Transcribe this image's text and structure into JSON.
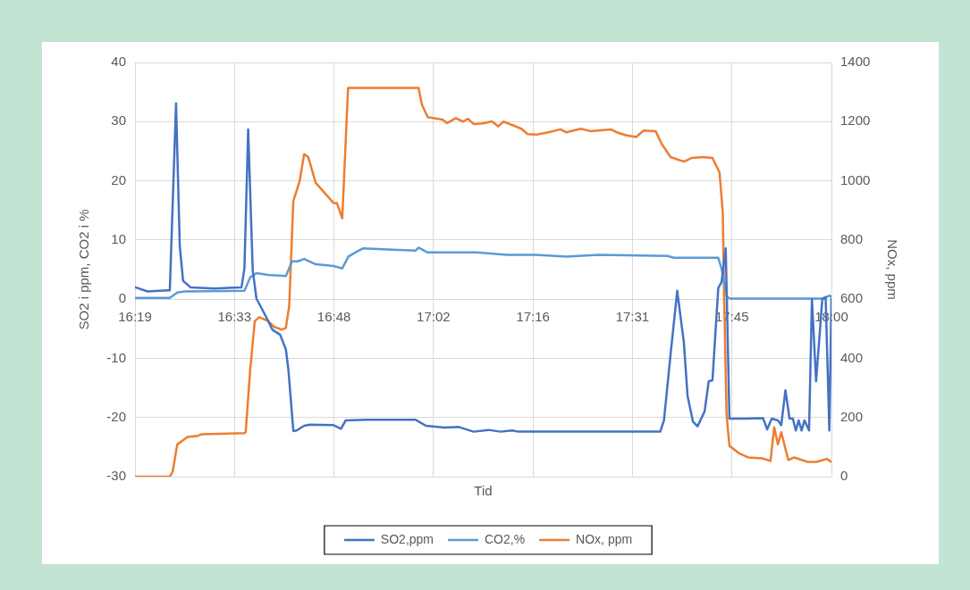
{
  "chart_data": {
    "type": "line",
    "xlabel": "Tid",
    "ylabel": "SO2 i ppm, CO2 i %",
    "y2label": "NOx, ppm",
    "xlim": [
      16.313,
      17.993
    ],
    "xticks": [
      {
        "value": 16.313,
        "label": "16:19"
      },
      {
        "value": 16.553,
        "label": "16:33"
      },
      {
        "value": 16.793,
        "label": "16:48"
      },
      {
        "value": 17.033,
        "label": "17:02"
      },
      {
        "value": 17.273,
        "label": "17:16"
      },
      {
        "value": 17.513,
        "label": "17:31"
      },
      {
        "value": 17.753,
        "label": "17:45"
      },
      {
        "value": 17.993,
        "label": "18:00"
      }
    ],
    "ylim": [
      -30,
      40
    ],
    "yticks": [
      -30,
      -20,
      -10,
      0,
      10,
      20,
      30,
      40
    ],
    "y2lim": [
      0,
      1400
    ],
    "y2ticks": [
      0,
      200,
      400,
      600,
      800,
      1000,
      1200,
      1400
    ],
    "grid": true,
    "legend": "bottom",
    "marker": "none",
    "line_style": "solid",
    "series": [
      {
        "name": "SO2,ppm",
        "color": "#4472c4",
        "x": [
          16.314,
          16.343,
          16.393,
          16.397,
          16.412,
          16.421,
          16.429,
          16.447,
          16.505,
          16.57,
          16.577,
          16.586,
          16.597,
          16.606,
          16.627,
          16.645,
          16.663,
          16.677,
          16.683,
          16.695,
          16.703,
          16.721,
          16.735,
          16.792,
          16.81,
          16.821,
          16.872,
          16.99,
          17.015,
          17.059,
          17.094,
          17.13,
          17.166,
          17.195,
          17.223,
          17.238,
          17.58,
          17.589,
          17.605,
          17.621,
          17.637,
          17.646,
          17.659,
          17.67,
          17.687,
          17.697,
          17.706,
          17.72,
          17.728,
          17.738,
          17.747,
          17.784,
          17.828,
          17.838,
          17.849,
          17.864,
          17.872,
          17.882,
          17.892,
          17.9,
          17.907,
          17.914,
          17.921,
          17.928,
          17.939,
          17.946,
          17.956,
          17.971,
          17.979,
          17.988,
          17.993
        ],
        "values": [
          2.0,
          1.3,
          1.5,
          1.5,
          33.1,
          9.0,
          3.1,
          2.0,
          1.8,
          2.0,
          5.2,
          28.7,
          4.9,
          0.1,
          -2.7,
          -5.2,
          -6.0,
          -8.5,
          -11.9,
          -22.3,
          -22.2,
          -21.4,
          -21.2,
          -21.3,
          -21.9,
          -20.5,
          -20.4,
          -20.4,
          -21.4,
          -21.7,
          -21.6,
          -22.4,
          -22.1,
          -22.4,
          -22.2,
          -22.4,
          -22.4,
          -20.5,
          -9.3,
          1.4,
          -7.3,
          -16.4,
          -20.7,
          -21.5,
          -19.0,
          -13.9,
          -13.7,
          1.9,
          2.9,
          8.6,
          -20.2,
          -20.2,
          -20.1,
          -22.0,
          -20.2,
          -20.5,
          -21.3,
          -15.4,
          -20.2,
          -20.2,
          -22.2,
          -20.5,
          -22.2,
          -20.5,
          -22.2,
          0,
          -13.9,
          0,
          0.3,
          -22.2,
          0
        ]
      },
      {
        "name": "CO2,%",
        "color": "#5b9bd5",
        "x": [
          16.314,
          16.397,
          16.415,
          16.433,
          16.577,
          16.591,
          16.606,
          16.634,
          16.677,
          16.692,
          16.706,
          16.721,
          16.749,
          16.792,
          16.813,
          16.828,
          16.85,
          16.864,
          16.922,
          16.99,
          16.997,
          17.019,
          17.137,
          17.21,
          17.281,
          17.353,
          17.432,
          17.598,
          17.612,
          17.72,
          17.727,
          17.733,
          17.741,
          17.749,
          17.971,
          17.989,
          17.993
        ],
        "values": [
          0.2,
          0.2,
          1.1,
          1.3,
          1.4,
          3.7,
          4.4,
          4.1,
          3.9,
          6.4,
          6.4,
          6.8,
          5.9,
          5.6,
          5.2,
          7.2,
          8.1,
          8.6,
          8.4,
          8.2,
          8.7,
          7.9,
          7.9,
          7.5,
          7.5,
          7.2,
          7.5,
          7.3,
          7.0,
          7.0,
          5.4,
          3.4,
          0.4,
          0.1,
          0.1,
          0.6,
          0.3
        ]
      },
      {
        "name": "NOx, ppm",
        "color": "#ed7d31",
        "axis": "y2",
        "x": [
          16.314,
          16.397,
          16.404,
          16.415,
          16.44,
          16.462,
          16.473,
          16.577,
          16.58,
          16.591,
          16.602,
          16.613,
          16.634,
          16.649,
          16.667,
          16.677,
          16.685,
          16.695,
          16.71,
          16.721,
          16.731,
          16.749,
          16.792,
          16.8,
          16.813,
          16.827,
          16.872,
          16.997,
          17.005,
          17.019,
          17.055,
          17.066,
          17.087,
          17.105,
          17.116,
          17.13,
          17.152,
          17.174,
          17.189,
          17.202,
          17.224,
          17.245,
          17.26,
          17.281,
          17.31,
          17.339,
          17.353,
          17.389,
          17.411,
          17.461,
          17.475,
          17.497,
          17.522,
          17.54,
          17.569,
          17.583,
          17.605,
          17.637,
          17.655,
          17.684,
          17.706,
          17.723,
          17.731,
          17.734,
          17.74,
          17.747,
          17.77,
          17.792,
          17.826,
          17.846,
          17.855,
          17.864,
          17.872,
          17.889,
          17.903,
          17.935,
          17.957,
          17.982,
          17.993
        ],
        "values": [
          0,
          0,
          18,
          109,
          134,
          137,
          143,
          147,
          150,
          363,
          526,
          539,
          526,
          506,
          497,
          503,
          577,
          932,
          998,
          1090,
          1080,
          993,
          925,
          925,
          873,
          1314,
          1314,
          1314,
          1258,
          1215,
          1207,
          1195,
          1212,
          1200,
          1210,
          1192,
          1194,
          1201,
          1184,
          1200,
          1188,
          1176,
          1158,
          1156,
          1164,
          1174,
          1164,
          1176,
          1168,
          1174,
          1164,
          1154,
          1148,
          1170,
          1168,
          1126,
          1080,
          1065,
          1077,
          1080,
          1077,
          1029,
          892,
          617,
          211,
          104,
          79,
          65,
          62,
          53,
          167,
          109,
          150,
          56,
          65,
          50,
          50,
          60,
          50
        ]
      }
    ]
  }
}
